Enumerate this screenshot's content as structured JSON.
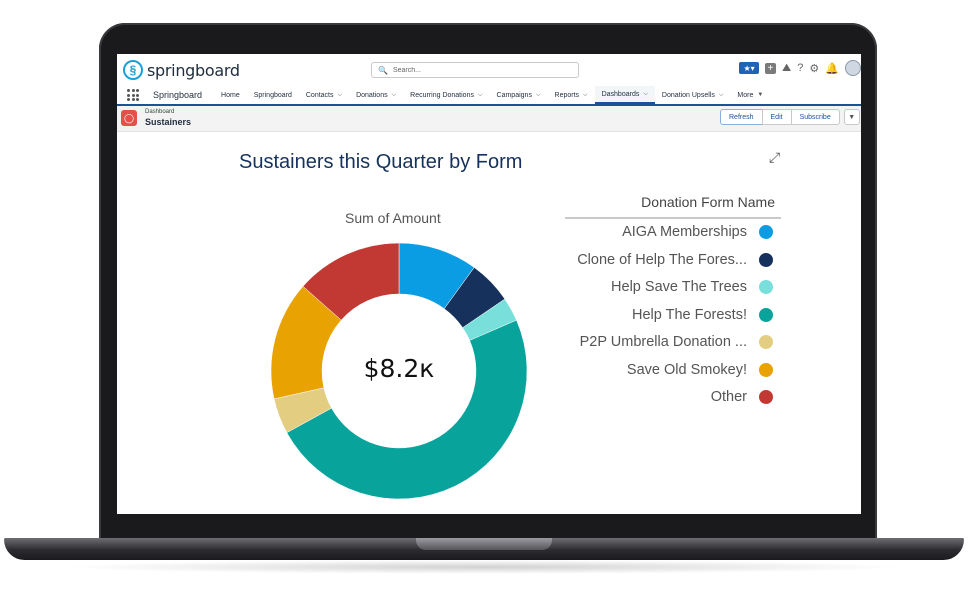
{
  "header": {
    "logo_text": "springboard",
    "search_placeholder": "Search..."
  },
  "nav": {
    "app_name": "Springboard",
    "items": [
      {
        "label": "Home",
        "chevron": false
      },
      {
        "label": "Springboard",
        "chevron": false
      },
      {
        "label": "Contacts",
        "chevron": true
      },
      {
        "label": "Donations",
        "chevron": true
      },
      {
        "label": "Recurring Donations",
        "chevron": true
      },
      {
        "label": "Campaigns",
        "chevron": true
      },
      {
        "label": "Reports",
        "chevron": true
      },
      {
        "label": "Dashboards",
        "chevron": true,
        "active": true
      },
      {
        "label": "Donation Upsells",
        "chevron": true
      },
      {
        "label": "More",
        "chevron": true
      }
    ]
  },
  "page": {
    "breadcrumb": "Dashboard",
    "title": "Sustainers",
    "buttons": {
      "refresh": "Refresh",
      "edit": "Edit",
      "subscribe": "Subscribe"
    }
  },
  "chart_title": "Sustainers this Quarter by Form",
  "chart_data": {
    "type": "pie",
    "title": "Sum of Amount",
    "center_label": "$8.2к",
    "legend_title": "Donation Form Name",
    "legend_position": "right",
    "categories": [
      "AIGA Memberships",
      "Clone of Help The Fores...",
      "Help Save The Trees",
      "Help The Forests!",
      "P2P Umbrella Donation ...",
      "Save Old Smokey!",
      "Other"
    ],
    "values": [
      10.0,
      5.5,
      3.0,
      48.5,
      4.5,
      15.0,
      13.5
    ],
    "colors": [
      "#0b9de4",
      "#16325c",
      "#79dfdb",
      "#08a49c",
      "#e3cd81",
      "#e8a202",
      "#c23934"
    ]
  }
}
